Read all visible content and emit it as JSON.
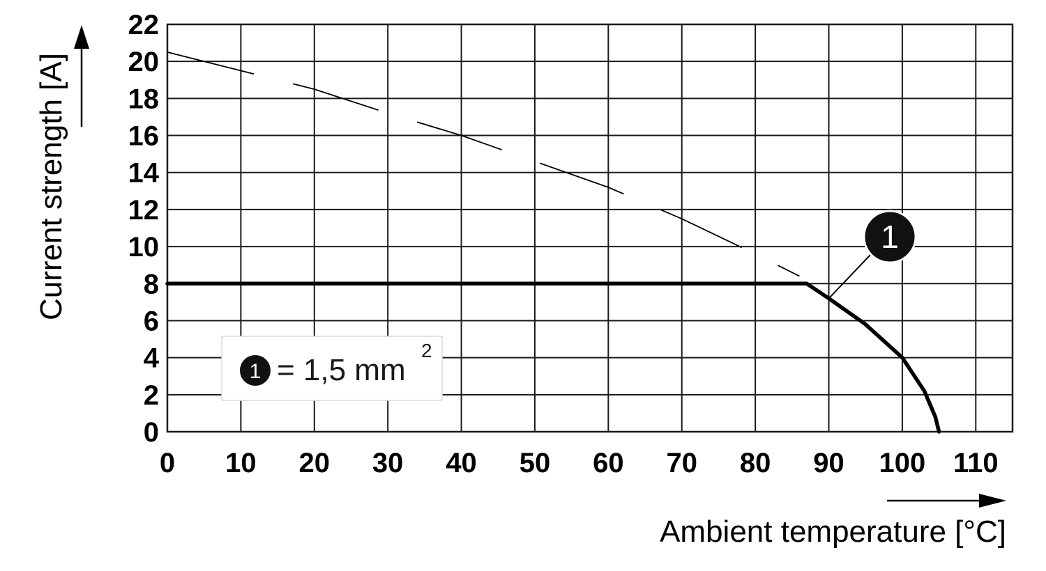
{
  "chart_data": {
    "type": "line",
    "xlabel": "Ambient temperature [°C]",
    "ylabel": "Current strength [A]",
    "xlim": [
      0,
      115
    ],
    "ylim": [
      0,
      22
    ],
    "x_ticks": [
      "0",
      "10",
      "20",
      "30",
      "40",
      "50",
      "60",
      "70",
      "80",
      "90",
      "100",
      "110"
    ],
    "y_ticks": [
      "0",
      "2",
      "4",
      "6",
      "8",
      "10",
      "12",
      "14",
      "16",
      "18",
      "20",
      "22"
    ],
    "grid": true,
    "series": [
      {
        "style": "dashed",
        "x": [
          0,
          10,
          20,
          30,
          40,
          50,
          60,
          70,
          80,
          86
        ],
        "y": [
          20.5,
          19.5,
          18.5,
          17.2,
          16.0,
          14.6,
          13.2,
          11.5,
          9.6,
          8.4
        ]
      },
      {
        "style": "solid-bold",
        "x": [
          0,
          87,
          90,
          95,
          100,
          103,
          104.5,
          105
        ],
        "y": [
          8,
          8,
          7.2,
          5.8,
          4.0,
          2.2,
          0.8,
          0
        ]
      }
    ],
    "annotation": {
      "marker": "1",
      "points_to_x": 90,
      "points_to_y": 7.2
    },
    "legend": {
      "marker": "1",
      "text": "= 1,5 mm",
      "superscript": "2"
    }
  }
}
